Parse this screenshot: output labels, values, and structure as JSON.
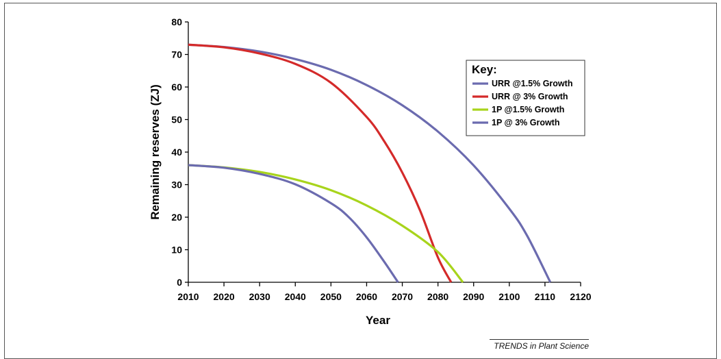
{
  "chart_data": {
    "type": "line",
    "xlabel": "Year",
    "ylabel": "Remaining reserves (ZJ)",
    "xlim": [
      2010,
      2120
    ],
    "ylim": [
      0,
      80
    ],
    "xticks": [
      2010,
      2020,
      2030,
      2040,
      2050,
      2060,
      2070,
      2080,
      2090,
      2100,
      2110,
      2120
    ],
    "yticks": [
      0,
      10,
      20,
      30,
      40,
      50,
      60,
      70,
      80
    ],
    "legend_title": "Key:",
    "legend_position": "top-right",
    "grid": false,
    "series": [
      {
        "name": "URR @1.5% Growth",
        "color": "#6b6baf",
        "x": [
          2010,
          2020,
          2030,
          2040,
          2050,
          2060,
          2070,
          2080,
          2090,
          2100,
          2105,
          2111.5
        ],
        "y": [
          73,
          72.3,
          70.9,
          68.6,
          65.3,
          60.6,
          54.4,
          46.3,
          35.9,
          22.6,
          14.3,
          0
        ]
      },
      {
        "name": "URR @ 3% Growth",
        "color": "#d42a2a",
        "x": [
          2010,
          2020,
          2030,
          2040,
          2050,
          2060,
          2065,
          2070,
          2075,
          2080,
          2083.7
        ],
        "y": [
          73,
          72.2,
          70.3,
          67.1,
          61.3,
          50.8,
          43.2,
          33.7,
          22.0,
          7.6,
          0
        ]
      },
      {
        "name": "1P @1.5% Growth",
        "color": "#a8d41c",
        "x": [
          2010,
          2020,
          2030,
          2040,
          2050,
          2060,
          2070,
          2080,
          2087
        ],
        "y": [
          36,
          35.3,
          33.9,
          31.6,
          28.3,
          23.6,
          17.4,
          9.3,
          0
        ]
      },
      {
        "name": "1P @ 3% Growth",
        "color": "#6b6baf",
        "x": [
          2010,
          2020,
          2030,
          2040,
          2050,
          2055,
          2060,
          2065,
          2068.8
        ],
        "y": [
          36,
          35.2,
          33.3,
          30.1,
          24.3,
          20.0,
          13.8,
          6.2,
          0
        ]
      }
    ]
  },
  "credit": "TRENDS in Plant Science"
}
